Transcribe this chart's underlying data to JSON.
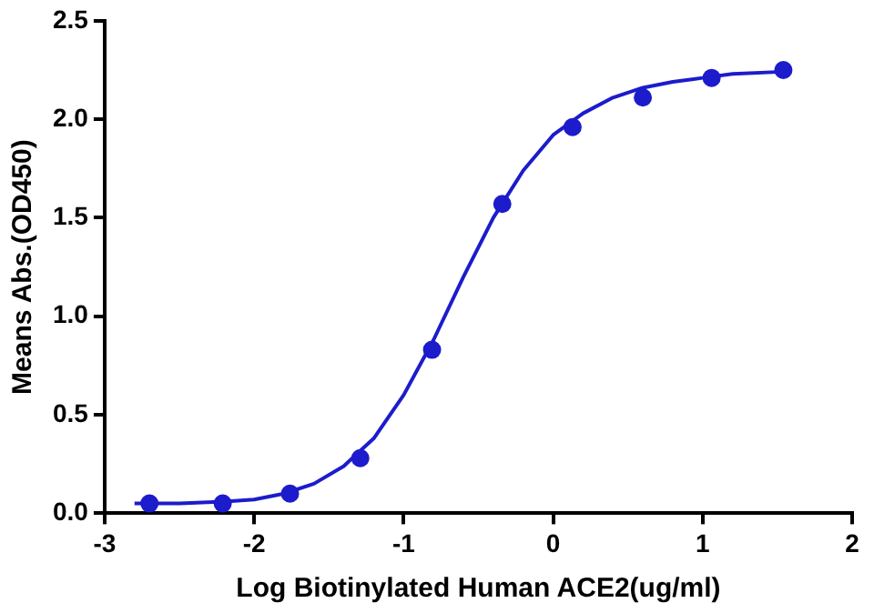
{
  "chart_data": {
    "type": "scatter",
    "xlabel": "Log Biotinylated Human ACE2(ug/ml)",
    "ylabel": "Means Abs.(OD450)",
    "xlim": [
      -3,
      2
    ],
    "xticks": [
      -3,
      -2,
      -1,
      0,
      1,
      2
    ],
    "ylim": [
      0,
      2.5
    ],
    "yticks": [
      {
        "value": 0,
        "label": "0.0"
      },
      {
        "value": 0.5,
        "label": "0.5"
      },
      {
        "value": 1,
        "label": "1.0"
      },
      {
        "value": 1.5,
        "label": "1.5"
      },
      {
        "value": 2,
        "label": "2.0"
      },
      {
        "value": 2.5,
        "label": "2.5"
      }
    ],
    "grid": false,
    "legend": false,
    "marker": "circle",
    "series": [
      {
        "color": "#1c1ccc",
        "x": [
          -2.7,
          -2.21,
          -1.76,
          -1.29,
          -0.81,
          -0.34,
          0.13,
          0.6,
          1.06,
          1.54
        ],
        "values": [
          0.05,
          0.05,
          0.1,
          0.28,
          0.83,
          1.57,
          1.96,
          2.11,
          2.21,
          2.25
        ]
      },
      {
        "type": "line",
        "color": "#1c1ccc",
        "marker": "none",
        "line_style": "solid",
        "x": [
          -2.8,
          -2.5,
          -2.2,
          -2.0,
          -1.8,
          -1.6,
          -1.4,
          -1.2,
          -1.0,
          -0.8,
          -0.6,
          -0.4,
          -0.2,
          0,
          0.2,
          0.4,
          0.6,
          0.8,
          1.0,
          1.2,
          1.5
        ],
        "values": [
          0.05,
          0.05,
          0.06,
          0.07,
          0.1,
          0.15,
          0.24,
          0.38,
          0.6,
          0.88,
          1.2,
          1.5,
          1.74,
          1.92,
          2.03,
          2.11,
          2.16,
          2.19,
          2.21,
          2.23,
          2.24
        ]
      }
    ]
  }
}
